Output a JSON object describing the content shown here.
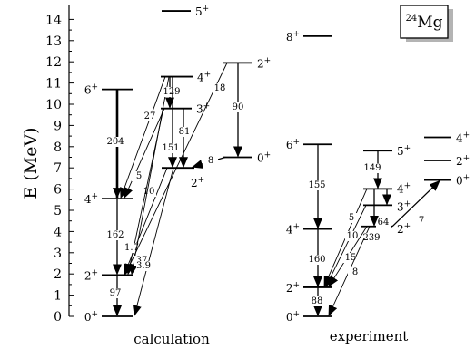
{
  "nucleus": {
    "mass": "24",
    "symbol": "Mg"
  },
  "y_axis": {
    "label": "E (MeV)",
    "ticks": [
      "0",
      "1",
      "2",
      "3",
      "4",
      "5",
      "6",
      "7",
      "8",
      "9",
      "10",
      "11",
      "12",
      "13",
      "14"
    ]
  },
  "panels": {
    "calculation": "calculation",
    "experiment": "experiment"
  },
  "calculation": {
    "levels": [
      {
        "id": "c0",
        "spin": "0",
        "parity": "+",
        "energy": 0.0
      },
      {
        "id": "c2a",
        "spin": "2",
        "parity": "+",
        "energy": 1.95
      },
      {
        "id": "c4a",
        "spin": "4",
        "parity": "+",
        "energy": 5.55
      },
      {
        "id": "c6",
        "spin": "6",
        "parity": "+",
        "energy": 10.7
      },
      {
        "id": "c2b",
        "spin": "2",
        "parity": "+",
        "energy": 7.0
      },
      {
        "id": "c3",
        "spin": "3",
        "parity": "+",
        "energy": 9.8
      },
      {
        "id": "c4b",
        "spin": "4",
        "parity": "+",
        "energy": 11.3
      },
      {
        "id": "c2c",
        "spin": "2",
        "parity": "+",
        "energy": 11.95
      },
      {
        "id": "c0b",
        "spin": "0",
        "parity": "+",
        "energy": 7.5
      },
      {
        "id": "c5",
        "spin": "5",
        "parity": "+",
        "energy": 14.4
      }
    ],
    "transitions": [
      {
        "id": "ct1",
        "label": "97",
        "from": "c2a",
        "to": "c0"
      },
      {
        "id": "ct2",
        "label": "162",
        "from": "c4a",
        "to": "c2a"
      },
      {
        "id": "ct3",
        "label": "204",
        "from": "c6",
        "to": "c4a"
      },
      {
        "id": "ct4",
        "label": "27",
        "from": "c4b",
        "to": "c4a"
      },
      {
        "id": "ct5",
        "label": "5",
        "from": "c3",
        "to": "c4a"
      },
      {
        "id": "ct6",
        "label": "10",
        "from": "c2b",
        "to": "c2a"
      },
      {
        "id": "ct7",
        "label": "1.7",
        "from": "c3",
        "to": "c2a"
      },
      {
        "id": "ct8",
        "label": "37",
        "from": "c4b",
        "to": "c2a"
      },
      {
        "id": "ct9",
        "label": "129",
        "from": "c4b",
        "to": "c3"
      },
      {
        "id": "ct10",
        "label": "151",
        "from": "c4b",
        "to": "c2b"
      },
      {
        "id": "ct11",
        "label": "81",
        "from": "c3",
        "to": "c2b"
      },
      {
        "id": "ct12",
        "label": "18",
        "from": "c2c",
        "to": "c2a"
      },
      {
        "id": "ct13",
        "label": "90",
        "from": "c2c",
        "to": "c0b"
      },
      {
        "id": "ct14",
        "label": "8",
        "from": "c0b",
        "to": "c2b"
      },
      {
        "id": "ct15",
        "label": "3.9",
        "from": "c2b",
        "to": "c0"
      }
    ]
  },
  "experiment": {
    "levels": [
      {
        "id": "e0",
        "spin": "0",
        "parity": "+",
        "energy": 0.0
      },
      {
        "id": "e2a",
        "spin": "2",
        "parity": "+",
        "energy": 1.37
      },
      {
        "id": "e4a",
        "spin": "4",
        "parity": "+",
        "energy": 4.12
      },
      {
        "id": "e6",
        "spin": "6",
        "parity": "+",
        "energy": 8.11
      },
      {
        "id": "e8",
        "spin": "8",
        "parity": "+",
        "energy": 13.21
      },
      {
        "id": "e2b",
        "spin": "2",
        "parity": "+",
        "energy": 4.24
      },
      {
        "id": "e3",
        "spin": "3",
        "parity": "+",
        "energy": 5.24
      },
      {
        "id": "e4b",
        "spin": "4",
        "parity": "+",
        "energy": 6.01
      },
      {
        "id": "e5",
        "spin": "5",
        "parity": "+",
        "energy": 7.81
      },
      {
        "id": "e0b",
        "spin": "0",
        "parity": "+",
        "energy": 6.43
      },
      {
        "id": "e2c",
        "spin": "2",
        "parity": "+",
        "energy": 7.35
      },
      {
        "id": "e4c",
        "spin": "4",
        "parity": "+",
        "energy": 8.44
      }
    ],
    "transitions": [
      {
        "id": "et1",
        "label": "88",
        "from": "e2a",
        "to": "e0"
      },
      {
        "id": "et2",
        "label": "160",
        "from": "e4a",
        "to": "e2a"
      },
      {
        "id": "et3",
        "label": "155",
        "from": "e6",
        "to": "e4a"
      },
      {
        "id": "et4",
        "label": "5",
        "from": "e4b",
        "to": "e2a"
      },
      {
        "id": "et5",
        "label": "10",
        "from": "e3",
        "to": "e2a"
      },
      {
        "id": "et6",
        "label": "15",
        "from": "e2b",
        "to": "e2a"
      },
      {
        "id": "et7",
        "label": "8",
        "from": "e2b",
        "to": "e0"
      },
      {
        "id": "et8",
        "label": "149",
        "from": "e5",
        "to": "e4b"
      },
      {
        "id": "et9",
        "label": "64",
        "from": "e4b",
        "to": "e3"
      },
      {
        "id": "et10",
        "label": "239",
        "from": "e4b",
        "to": "e2b"
      },
      {
        "id": "et11",
        "label": "7",
        "from": "e2b",
        "to": "e0b"
      }
    ]
  }
}
